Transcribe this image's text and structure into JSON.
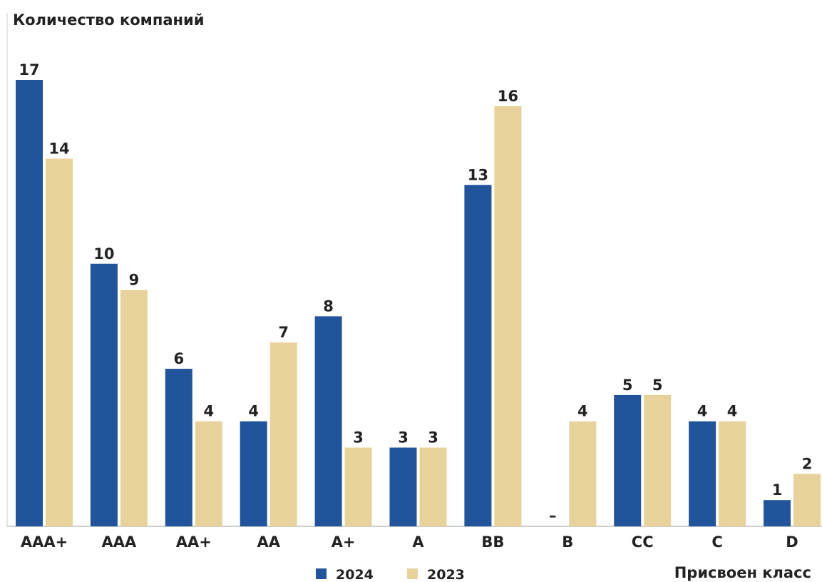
{
  "chart_data": {
    "type": "bar",
    "ylabel": "Количество компаний",
    "xlabel": "Присвоен класс",
    "categories": [
      "AAA+",
      "AAA",
      "AA+",
      "AA",
      "A+",
      "A",
      "BB",
      "B",
      "CC",
      "C",
      "D"
    ],
    "series": [
      {
        "name": "2024",
        "color": "#21549a",
        "values": [
          17,
          10,
          6,
          4,
          8,
          3,
          13,
          null,
          5,
          4,
          1
        ],
        "labels": [
          "17",
          "10",
          "6",
          "4",
          "8",
          "3",
          "13",
          "–",
          "5",
          "4",
          "1"
        ]
      },
      {
        "name": "2023",
        "color": "#e8d29b",
        "values": [
          14,
          9,
          4,
          7,
          3,
          3,
          16,
          4,
          5,
          4,
          2
        ],
        "labels": [
          "14",
          "9",
          "4",
          "7",
          "3",
          "3",
          "16",
          "4",
          "5",
          "4",
          "2"
        ]
      }
    ],
    "ylim": [
      0,
      17
    ],
    "grid": false,
    "legend_position": "bottom-center"
  }
}
